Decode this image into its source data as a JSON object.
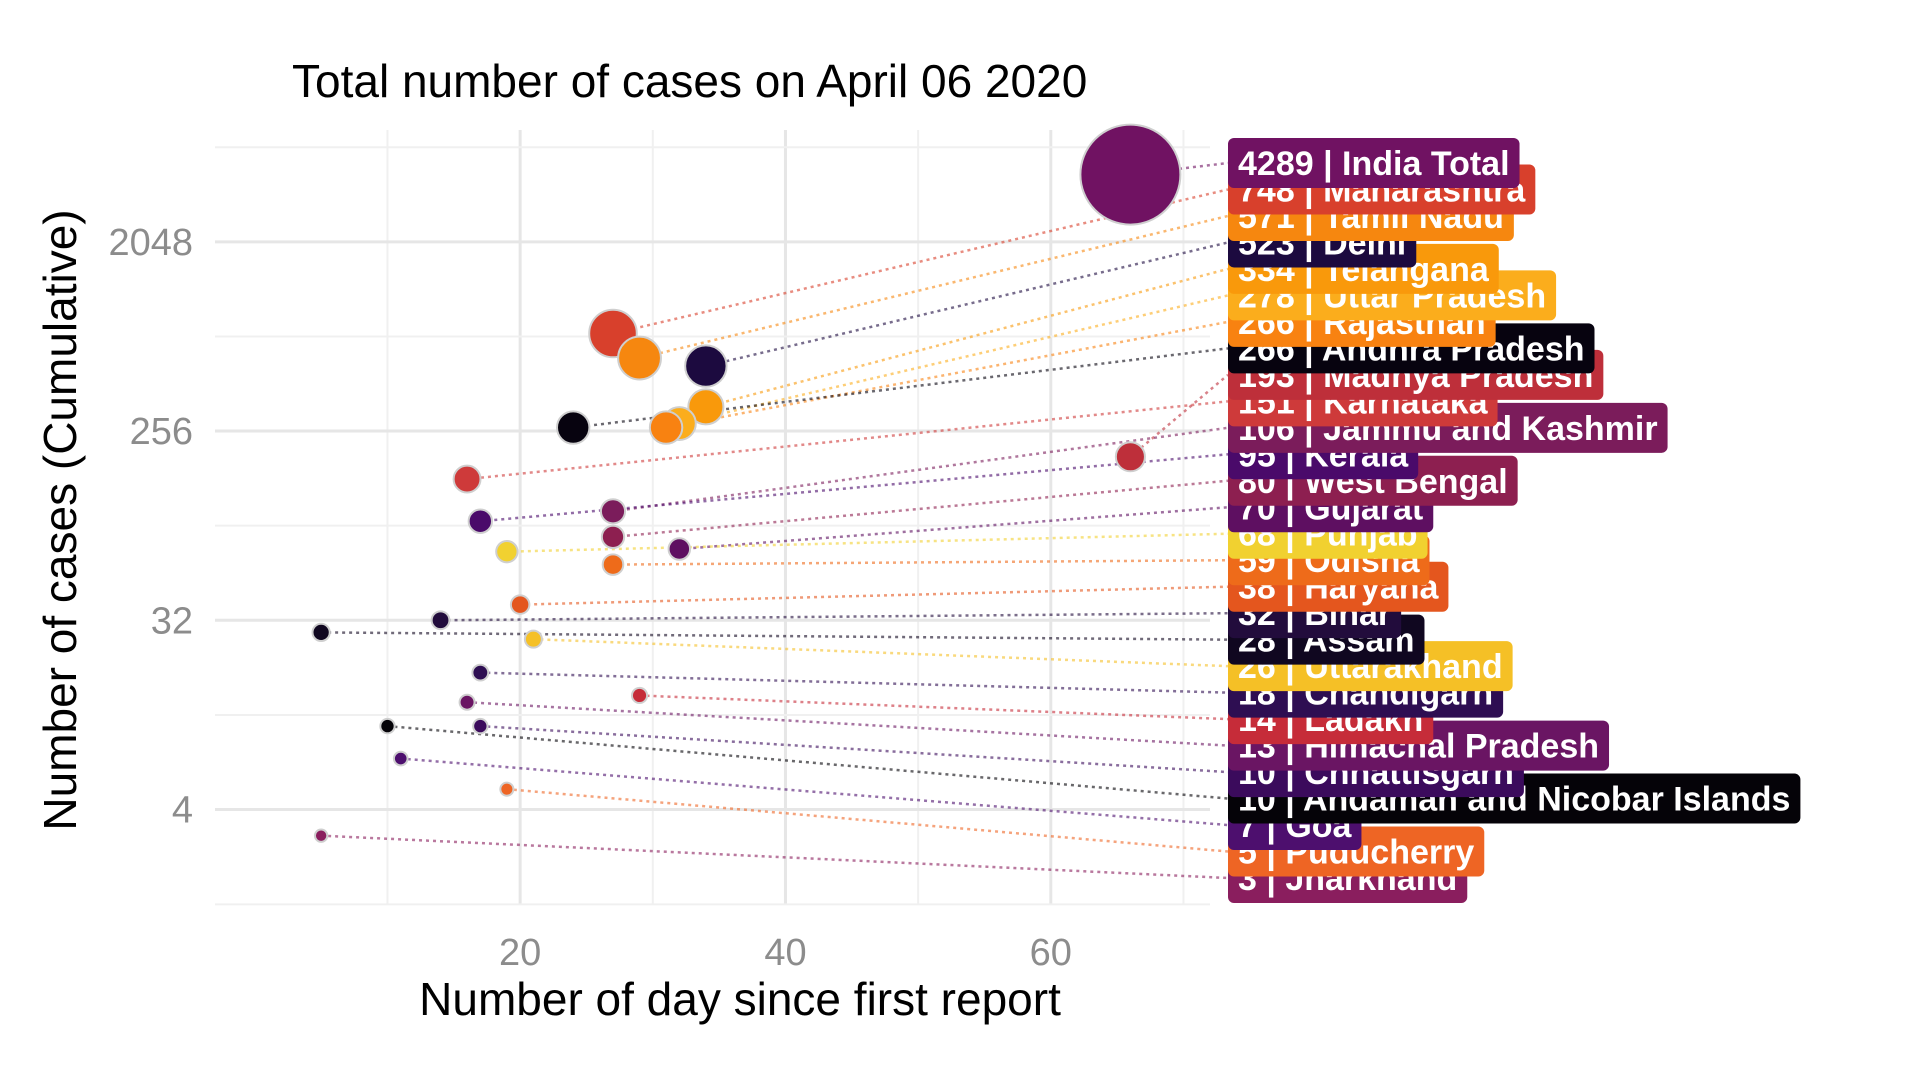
{
  "chart_data": {
    "type": "scatter",
    "title": "Total number of cases on  April 06 2020",
    "xlabel": "Number of day since first report",
    "ylabel": "Number of cases (Cumulative)",
    "x_ticks": [
      20,
      40,
      60
    ],
    "y_ticks": [
      4,
      32,
      256,
      2048
    ],
    "y_scale": "log2",
    "xlim": [
      -3,
      72
    ],
    "ylim": [
      1.4,
      7000
    ],
    "grid": true,
    "points": [
      {
        "label": "4289 | India Total",
        "cases": 4289,
        "day": 66,
        "color": "#701262"
      },
      {
        "label": "748 | Maharashtra",
        "cases": 748,
        "day": 27,
        "color": "#D8402C"
      },
      {
        "label": "571 | Tamil Nadu",
        "cases": 571,
        "day": 29,
        "color": "#F6870F"
      },
      {
        "label": "334 | Telangana",
        "cases": 334,
        "day": 34,
        "color": "#F9990B"
      },
      {
        "label": "278 | Uttar Pradesh",
        "cases": 278,
        "day": 32,
        "color": "#FBAD1C"
      },
      {
        "label": "266 | Rajasthan",
        "cases": 266,
        "day": 31,
        "color": "#F88211"
      },
      {
        "label": "523 | Delhi",
        "cases": 523,
        "day": 34,
        "color": "#1C0A3F"
      },
      {
        "label": "266 | Andhra Pradesh",
        "cases": 266,
        "day": 24,
        "color": "#07030F"
      },
      {
        "label": "193 | Madhya Pradesh",
        "cases": 193,
        "day": 66,
        "color": "#BE2F3A"
      },
      {
        "label": "151 | Karnataka",
        "cases": 151,
        "day": 16,
        "color": "#CE3A3A"
      },
      {
        "label": "106 | Jammu and Kashmir",
        "cases": 106,
        "day": 27,
        "color": "#7B1C5B"
      },
      {
        "label": "95 | Kerala",
        "cases": 95,
        "day": 17,
        "color": "#4A0A6A"
      },
      {
        "label": "80 | West Bengal",
        "cases": 80,
        "day": 27,
        "color": "#8D1F50"
      },
      {
        "label": "70 | Gujarat",
        "cases": 70,
        "day": 32,
        "color": "#5E0F61"
      },
      {
        "label": "68 | Punjab",
        "cases": 68,
        "day": 19,
        "color": "#F1D130"
      },
      {
        "label": "59 | Odisha",
        "cases": 59,
        "day": 27,
        "color": "#EE6B1A"
      },
      {
        "label": "26 | Uttarakhand",
        "cases": 26,
        "day": 21,
        "color": "#F5C026"
      },
      {
        "label": "38 | Haryana",
        "cases": 38,
        "day": 20,
        "color": "#E4561E"
      },
      {
        "label": "32 | Bihar",
        "cases": 32,
        "day": 14,
        "color": "#220C3C"
      },
      {
        "label": "28 | Assam",
        "cases": 28,
        "day": 5,
        "color": "#100720"
      },
      {
        "label": "18 | Chandigarh",
        "cases": 18,
        "day": 17,
        "color": "#2E0E52"
      },
      {
        "label": "14 | Ladakh",
        "cases": 14,
        "day": 29,
        "color": "#C62C39"
      },
      {
        "label": "13 | Himachal Pradesh",
        "cases": 13,
        "day": 16,
        "color": "#6A1563"
      },
      {
        "label": "10 | Chhattisgarh",
        "cases": 10,
        "day": 17,
        "color": "#3B0B5C"
      },
      {
        "label": "10 | Andaman and Nicobar Islands",
        "cases": 10,
        "day": 10,
        "color": "#050308"
      },
      {
        "label": "7 | Goa",
        "cases": 7,
        "day": 11,
        "color": "#4D0F6E"
      },
      {
        "label": "5 | Puducherry",
        "cases": 5,
        "day": 19,
        "color": "#EE6524"
      },
      {
        "label": "3 | Jharkhand",
        "cases": 3,
        "day": 5,
        "color": "#8A1E5E"
      }
    ]
  }
}
